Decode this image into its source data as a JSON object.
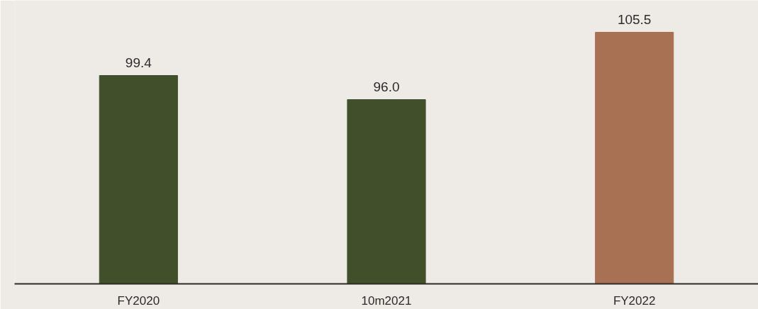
{
  "chart_data": {
    "type": "bar",
    "categories": [
      "FY2020",
      "10m2021",
      "FY2022"
    ],
    "values": [
      99.4,
      96.0,
      105.5
    ],
    "colors": [
      "#41502a",
      "#41502a",
      "#a87153"
    ],
    "value_labels": [
      "99.4",
      "96.0",
      "105.5"
    ],
    "ylim": [
      70,
      110
    ],
    "grid": false,
    "tick_labels": "x"
  }
}
